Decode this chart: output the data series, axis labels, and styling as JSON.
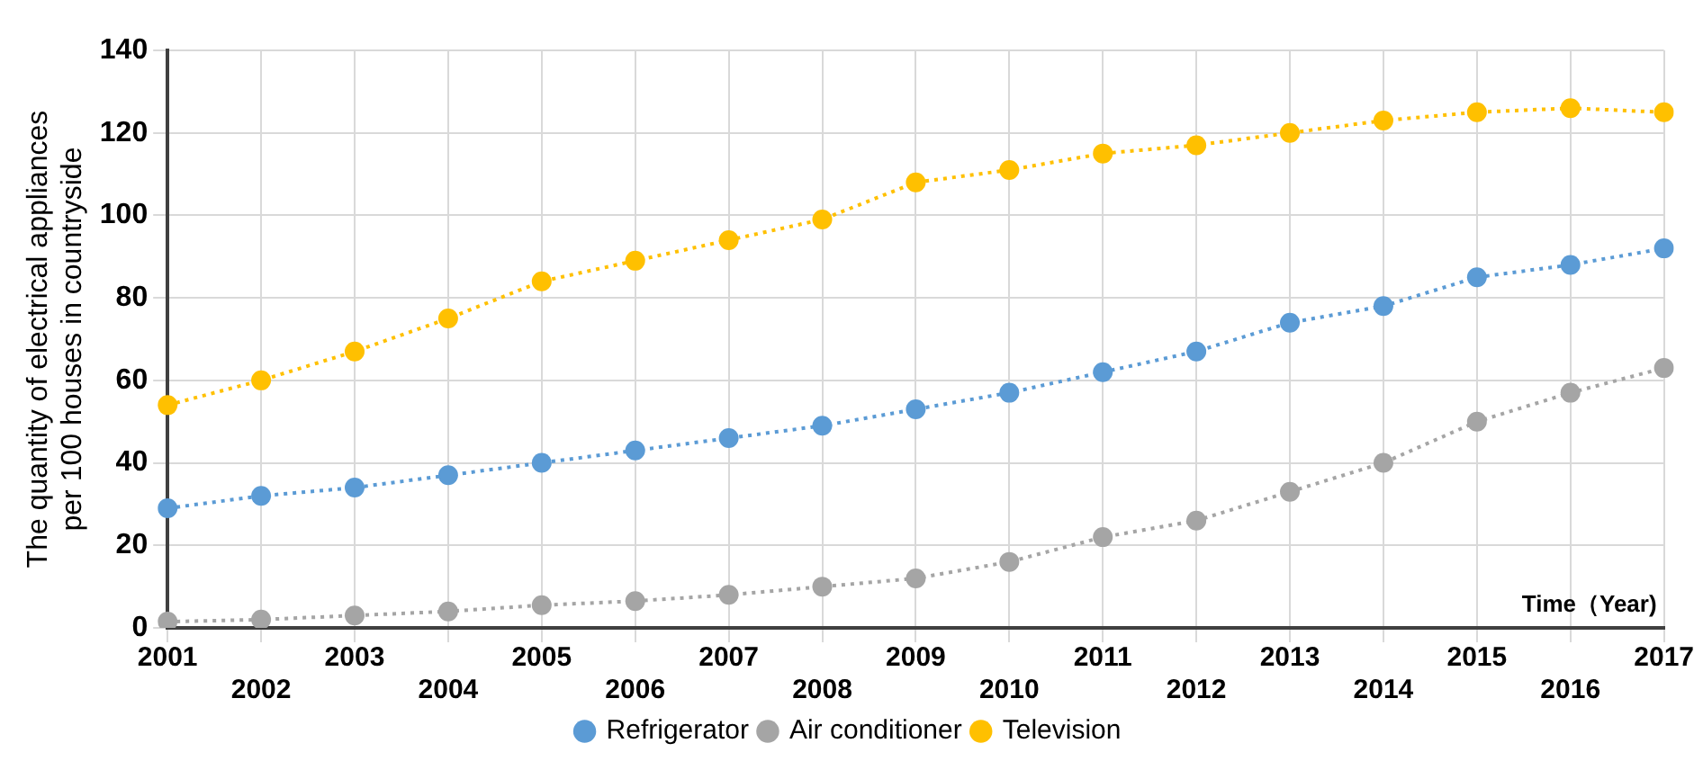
{
  "chart_data": {
    "type": "line",
    "xlabel": "Time（Year)",
    "ylabel": "The quantity of electrical appliances per 100 houses in countryside",
    "categories": [
      "2001",
      "2002",
      "2003",
      "2004",
      "2005",
      "2006",
      "2007",
      "2008",
      "2009",
      "2010",
      "2011",
      "2012",
      "2013",
      "2014",
      "2015",
      "2016",
      "2017"
    ],
    "series": [
      {
        "name": "Refrigerator",
        "color": "#5b9bd5",
        "values": [
          29,
          32,
          34,
          37,
          40,
          43,
          46,
          49,
          53,
          57,
          62,
          67,
          74,
          78,
          85,
          88,
          92
        ]
      },
      {
        "name": "Air conditioner",
        "color": "#a5a5a5",
        "values": [
          1.5,
          2,
          3,
          4,
          5.5,
          6.5,
          8,
          10,
          12,
          16,
          22,
          26,
          33,
          40,
          50,
          57,
          63
        ]
      },
      {
        "name": "Television",
        "color": "#ffc000",
        "values": [
          54,
          60,
          67,
          75,
          84,
          89,
          94,
          99,
          108,
          111,
          115,
          117,
          120,
          123,
          125,
          126,
          125
        ]
      }
    ],
    "ylim": [
      0,
      140
    ],
    "yticks": [
      0,
      20,
      40,
      60,
      80,
      100,
      120,
      140
    ],
    "grid": true,
    "legend": "bottom",
    "marker": "circle",
    "line_style": "dotted"
  }
}
